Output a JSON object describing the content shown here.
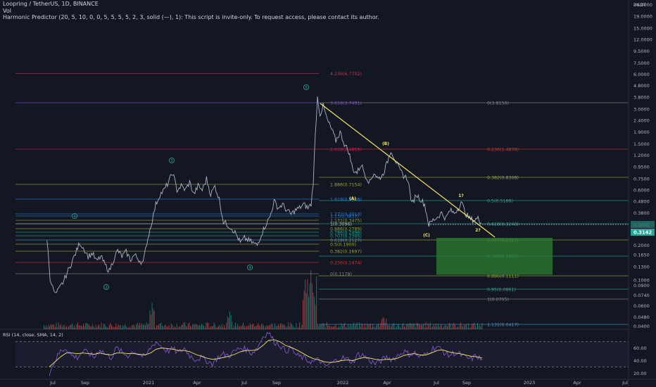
{
  "header": {
    "title": "Loopring / TetherUS, 1D, BINANCE",
    "vol_label": "Vol",
    "indicator_label": "Harmonic Predictor (20, 5, 10, 0, 0, 5, 5, 5, 5, 2, 3, solid (—), 1): This script is invite-only. To request access, please contact its author."
  },
  "chart_data": {
    "type": "line",
    "title": "Loopring / TetherUS, 1D, BINANCE",
    "y_axis_label": "USDT",
    "y_scale": "log",
    "y_ticks": [
      "24.0000",
      "19.0000",
      "15.0000",
      "12.0000",
      "9.5000",
      "7.5000",
      "6.0000",
      "4.8000",
      "3.8000",
      "3.0000",
      "2.4000",
      "1.9000",
      "1.5000",
      "1.2000",
      "0.9500",
      "0.7500",
      "0.6000",
      "0.4800",
      "0.3800",
      "0.3000",
      "0.2500",
      "0.2000",
      "0.1650",
      "0.1300",
      "0.1000",
      "0.0900",
      "0.0740",
      "0.0600",
      "0.0480",
      "0.0400"
    ],
    "x_ticks": [
      "Jul",
      "Sep",
      "2021",
      "Apr",
      "Jul",
      "Sep",
      "2022",
      "Apr",
      "Jul",
      "Sep",
      "2023",
      "Apr",
      "Jul"
    ],
    "current_price": "0.3142",
    "series": [
      {
        "values": [
          [
            "2020-06-20",
            0.23
          ],
          [
            "2020-06-26",
            0.105
          ],
          [
            "2020-07-01",
            0.085
          ],
          [
            "2020-07-06",
            0.075
          ],
          [
            "2020-07-12",
            0.082
          ],
          [
            "2020-07-20",
            0.095
          ],
          [
            "2020-07-28",
            0.115
          ],
          [
            "2020-08-05",
            0.14
          ],
          [
            "2020-08-13",
            0.17
          ],
          [
            "2020-08-21",
            0.21
          ],
          [
            "2020-08-28",
            0.19
          ],
          [
            "2020-09-06",
            0.16
          ],
          [
            "2020-09-14",
            0.17
          ],
          [
            "2020-09-22",
            0.145
          ],
          [
            "2020-09-30",
            0.16
          ],
          [
            "2020-10-08",
            0.135
          ],
          [
            "2020-10-16",
            0.12
          ],
          [
            "2020-10-24",
            0.15
          ],
          [
            "2020-11-01",
            0.18
          ],
          [
            "2020-11-09",
            0.16
          ],
          [
            "2020-11-17",
            0.175
          ],
          [
            "2020-11-25",
            0.15
          ],
          [
            "2020-12-03",
            0.165
          ],
          [
            "2020-12-11",
            0.15
          ],
          [
            "2020-12-19",
            0.14
          ],
          [
            "2020-12-26",
            0.21
          ],
          [
            "2021-01-03",
            0.3
          ],
          [
            "2021-01-12",
            0.45
          ],
          [
            "2021-01-20",
            0.55
          ],
          [
            "2021-01-28",
            0.6
          ],
          [
            "2021-02-05",
            0.7
          ],
          [
            "2021-02-13",
            0.85
          ],
          [
            "2021-02-21",
            0.6
          ],
          [
            "2021-03-01",
            0.65
          ],
          [
            "2021-03-09",
            0.6
          ],
          [
            "2021-03-17",
            0.7
          ],
          [
            "2021-03-25",
            0.55
          ],
          [
            "2021-04-02",
            0.65
          ],
          [
            "2021-04-10",
            0.6
          ],
          [
            "2021-04-18",
            0.75
          ],
          [
            "2021-04-26",
            0.55
          ],
          [
            "2021-05-04",
            0.65
          ],
          [
            "2021-05-12",
            0.5
          ],
          [
            "2021-05-20",
            0.32
          ],
          [
            "2021-05-28",
            0.3
          ],
          [
            "2021-06-05",
            0.28
          ],
          [
            "2021-06-13",
            0.25
          ],
          [
            "2021-06-21",
            0.21
          ],
          [
            "2021-06-29",
            0.23
          ],
          [
            "2021-07-07",
            0.22
          ],
          [
            "2021-07-15",
            0.21
          ],
          [
            "2021-07-23",
            0.2
          ],
          [
            "2021-07-31",
            0.25
          ],
          [
            "2021-08-08",
            0.3
          ],
          [
            "2021-08-16",
            0.35
          ],
          [
            "2021-08-24",
            0.48
          ],
          [
            "2021-09-01",
            0.42
          ],
          [
            "2021-09-09",
            0.45
          ],
          [
            "2021-09-17",
            0.4
          ],
          [
            "2021-09-25",
            0.37
          ],
          [
            "2021-10-03",
            0.4
          ],
          [
            "2021-10-11",
            0.42
          ],
          [
            "2021-10-19",
            0.45
          ],
          [
            "2021-10-27",
            0.42
          ],
          [
            "2021-11-02",
            0.45
          ],
          [
            "2021-11-06",
            0.7
          ],
          [
            "2021-11-10",
            1.8
          ],
          [
            "2021-11-14",
            3.79
          ],
          [
            "2021-11-19",
            2.7
          ],
          [
            "2021-11-25",
            3.2
          ],
          [
            "2021-12-03",
            2.4
          ],
          [
            "2021-12-11",
            2.0
          ],
          [
            "2021-12-19",
            1.6
          ],
          [
            "2021-12-27",
            1.9
          ],
          [
            "2022-01-04",
            1.5
          ],
          [
            "2022-01-12",
            1.3
          ],
          [
            "2022-01-20",
            0.9
          ],
          [
            "2022-01-28",
            0.85
          ],
          [
            "2022-02-05",
            1.0
          ],
          [
            "2022-02-13",
            0.8
          ],
          [
            "2022-02-21",
            0.7
          ],
          [
            "2022-03-01",
            0.85
          ],
          [
            "2022-03-09",
            0.75
          ],
          [
            "2022-03-17",
            0.8
          ],
          [
            "2022-03-25",
            1.0
          ],
          [
            "2022-04-02",
            1.33
          ],
          [
            "2022-04-10",
            1.1
          ],
          [
            "2022-04-18",
            0.9
          ],
          [
            "2022-04-26",
            0.8
          ],
          [
            "2022-05-04",
            0.75
          ],
          [
            "2022-05-12",
            0.45
          ],
          [
            "2022-05-20",
            0.55
          ],
          [
            "2022-05-28",
            0.5
          ],
          [
            "2022-06-05",
            0.45
          ],
          [
            "2022-06-13",
            0.3
          ],
          [
            "2022-06-21",
            0.33
          ],
          [
            "2022-06-29",
            0.35
          ],
          [
            "2022-07-07",
            0.38
          ],
          [
            "2022-07-15",
            0.34
          ],
          [
            "2022-07-23",
            0.4
          ],
          [
            "2022-07-31",
            0.38
          ],
          [
            "2022-08-08",
            0.42
          ],
          [
            "2022-08-13",
            0.48
          ],
          [
            "2022-08-21",
            0.38
          ],
          [
            "2022-08-29",
            0.34
          ],
          [
            "2022-09-06",
            0.33
          ],
          [
            "2022-09-14",
            0.34
          ],
          [
            "2022-09-20",
            0.3142
          ]
        ]
      }
    ],
    "fib_levels": [
      {
        "label": "4.236(6.7702)",
        "color": "#b23a5c"
      },
      {
        "label": "3.618(3.7491)",
        "color": "#7d4fd1"
      },
      {
        "label": "2.618(2.4859)",
        "color": "#c2185b"
      },
      {
        "label": "1.886(0.7154)",
        "color": "#9aa33a"
      },
      {
        "label": "1.618(0.5266)",
        "color": "#2e7bd6"
      },
      {
        "label": "1.272(0.4013)",
        "color": "#2e7bd6"
      },
      {
        "label": "1.13(0.3837)",
        "color": "#2e7bd6"
      },
      {
        "label": "1.131(0.3475)",
        "color": "#8a9a3a"
      },
      {
        "label": "1(0.3096)",
        "color": "#cccccc"
      },
      {
        "label": "0.886(0.2789)",
        "color": "#9aa33a"
      },
      {
        "label": "0.786(0.2496)",
        "color": "#26a69a"
      },
      {
        "label": "0.707(0.2305)",
        "color": "#26a69a"
      },
      {
        "label": "0.618(0.2127)",
        "color": "#4a90c8"
      },
      {
        "label": "0.5(0.1900)",
        "color": "#9aa33a"
      },
      {
        "label": "0.382(0.1697)",
        "color": "#9aa33a"
      },
      {
        "label": "0.236(0.1474)",
        "color": "#d32f2f"
      },
      {
        "label": "0(0.1178)",
        "color": "#888888"
      },
      {
        "label": "0(3.8150)",
        "color": "#888888"
      },
      {
        "label": "0.236(1.4878)",
        "color": "#d32f2f"
      },
      {
        "label": "0.382(0.8308)",
        "color": "#9aa33a"
      },
      {
        "label": "0.5(0.5188)",
        "color": "#26a69a"
      },
      {
        "label": "0.618(0.3240)",
        "color": "#26a69a"
      },
      {
        "label": "0.707(0.2317)",
        "color": "#9aa33a"
      },
      {
        "label": "0.786(0.1657)",
        "color": "#26a69a"
      },
      {
        "label": "0.886(0.1111)",
        "color": "#9aa33a"
      },
      {
        "label": "0.95(0.0861)",
        "color": "#26a69a"
      },
      {
        "label": "1(0.0705)",
        "color": "#888888"
      },
      {
        "label": "1.131(0.0417)",
        "color": "#4a90c8"
      }
    ],
    "wave_labels": [
      {
        "text": "1",
        "color": "#26a69a"
      },
      {
        "text": "2",
        "color": "#26a69a"
      },
      {
        "text": "3",
        "color": "#26a69a"
      },
      {
        "text": "4",
        "color": "#26a69a"
      },
      {
        "text": "5",
        "color": "#26a69a"
      },
      {
        "text": "(A)",
        "color": "#f5e663"
      },
      {
        "text": "(B)",
        "color": "#f5e663"
      },
      {
        "text": "(C)",
        "color": "#f5e663"
      },
      {
        "text": "1?",
        "color": "#f5e663"
      },
      {
        "text": "2?",
        "color": "#f5e663"
      }
    ],
    "rsi": {
      "label": "RSI (14, close, SMA, 14, 2)",
      "y_ticks": [
        "60.00",
        "40.00",
        "20.00"
      ],
      "upper": 70,
      "lower": 30,
      "rsi_values": [
        20,
        40,
        55,
        60,
        48,
        45,
        55,
        52,
        45,
        58,
        50,
        45,
        60,
        52,
        48,
        55,
        50,
        45,
        60,
        70,
        62,
        55,
        58,
        52,
        60,
        48,
        42,
        45,
        40,
        35,
        45,
        50,
        48,
        55,
        60,
        58,
        52,
        60,
        78,
        85,
        70,
        65,
        55,
        60,
        48,
        45,
        40,
        38,
        42,
        30,
        35,
        40,
        45,
        42,
        38,
        50,
        48,
        40,
        35,
        40,
        45,
        42,
        48,
        55,
        50,
        52,
        45,
        50,
        58,
        62,
        55,
        48,
        52,
        50,
        45,
        42,
        48,
        40
      ],
      "sma_values": [
        30,
        38,
        46,
        52,
        52,
        51,
        52,
        51,
        50,
        52,
        50,
        49,
        52,
        52,
        51,
        51,
        50,
        49,
        52,
        58,
        60,
        59,
        58,
        56,
        56,
        54,
        50,
        47,
        44,
        42,
        43,
        45,
        47,
        50,
        54,
        56,
        56,
        57,
        64,
        72,
        73,
        70,
        64,
        61,
        57,
        52,
        47,
        43,
        41,
        38,
        37,
        38,
        40,
        41,
        40,
        43,
        45,
        44,
        42,
        41,
        42,
        42,
        44,
        48,
        50,
        51,
        49,
        49,
        52,
        56,
        57,
        54,
        52,
        51,
        49,
        47,
        46,
        44
      ]
    },
    "target_zone": {
      "from": "0.2317",
      "to": "0.1111",
      "color": "#2e7d32"
    },
    "grid": false,
    "legend_position": "top-left"
  }
}
